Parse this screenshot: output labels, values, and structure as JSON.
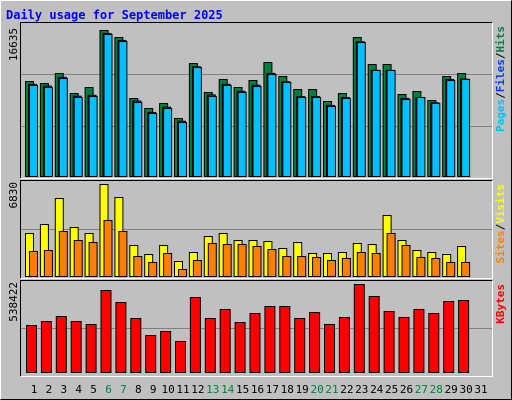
{
  "title": "Daily usage for September 2025",
  "legend_separator": "/",
  "categories": [
    "1",
    "2",
    "3",
    "4",
    "5",
    "6",
    "7",
    "8",
    "9",
    "10",
    "11",
    "12",
    "13",
    "14",
    "15",
    "16",
    "17",
    "18",
    "19",
    "20",
    "21",
    "22",
    "23",
    "24",
    "25",
    "26",
    "27",
    "28",
    "29",
    "30",
    "31"
  ],
  "category_colors": [
    "#000000",
    "#000000",
    "#000000",
    "#000000",
    "#000000",
    "#008040",
    "#008040",
    "#000000",
    "#000000",
    "#000000",
    "#000000",
    "#000000",
    "#008040",
    "#008040",
    "#000000",
    "#000000",
    "#000000",
    "#000000",
    "#000000",
    "#008040",
    "#008040",
    "#000000",
    "#000000",
    "#000000",
    "#000000",
    "#000000",
    "#008040",
    "#008040",
    "#000000",
    "#000000",
    "#000000"
  ],
  "chart_data": [
    {
      "type": "bar",
      "ylim": [
        0,
        16635
      ],
      "yticks": [
        16635
      ],
      "legend_order": [
        2,
        1,
        0
      ],
      "series": [
        {
          "name": "Hits",
          "color": "#008040",
          "values": [
            10821,
            10593,
            11732,
            9454,
            10137,
            16635,
            15832,
            8884,
            7745,
            8315,
            6606,
            12871,
            9568,
            11048,
            10137,
            10934,
            12985,
            11390,
            9909,
            9909,
            8543,
            9454,
            15832,
            12757,
            12757,
            9340,
            9682,
            8656,
            11390,
            11732,
            null
          ]
        },
        {
          "name": "Files",
          "color": "#0040ff",
          "values": [
            10500,
            10300,
            11300,
            9150,
            9250,
            16300,
            15500,
            8600,
            7300,
            7900,
            6300,
            12500,
            9300,
            10500,
            9700,
            10400,
            11750,
            10800,
            9100,
            9100,
            8100,
            9000,
            15350,
            12100,
            12100,
            8900,
            9000,
            8400,
            11050,
            11100,
            null
          ]
        },
        {
          "name": "Pages",
          "color": "#00c0ff",
          "values": [
            10365,
            10137,
            11162,
            8998,
            9112,
            16179,
            15376,
            8428,
            7176,
            7745,
            6150,
            12415,
            9112,
            10365,
            9568,
            10251,
            11618,
            10707,
            8998,
            8998,
            7974,
            8884,
            15262,
            12074,
            12074,
            8770,
            8998,
            8315,
            10934,
            11048,
            null
          ]
        }
      ]
    },
    {
      "type": "bar",
      "ylim": [
        0,
        6830
      ],
      "yticks": [
        6830
      ],
      "legend_order": [
        1,
        0
      ],
      "series": [
        {
          "name": "Visits",
          "color": "#ffff00",
          "values": [
            3191,
            3858,
            5788,
            3636,
            3191,
            6830,
            5862,
            2300,
            1632,
            2300,
            1113,
            1781,
            2968,
            3191,
            2671,
            2671,
            2597,
            2078,
            2523,
            1707,
            1707,
            1781,
            2449,
            2374,
            4526,
            2671,
            1929,
            1781,
            1632,
            2226,
            null
          ]
        },
        {
          "name": "Sites",
          "color": "#ff8000",
          "values": [
            1855,
            1929,
            3339,
            2671,
            2523,
            4155,
            3339,
            1484,
            1039,
            1707,
            519,
            1187,
            2449,
            2374,
            2374,
            2226,
            2003,
            1484,
            1484,
            1410,
            1187,
            1336,
            1781,
            1707,
            3191,
            2300,
            1410,
            1336,
            1039,
            1039,
            null
          ]
        }
      ]
    },
    {
      "type": "bar",
      "ylim": [
        0,
        538422
      ],
      "yticks": [
        538422
      ],
      "legend_order": [
        0
      ],
      "series": [
        {
          "name": "KBytes",
          "color": "#ff0000",
          "values": [
            287546,
            312018,
            342608,
            312018,
            293664,
            501676,
            428260,
            330372,
            226366,
            250838,
            189658,
            458850,
            330372,
            385434,
            305900,
            360962,
            403788,
            403788,
            330372,
            367080,
            293664,
            336490,
            538422,
            464968,
            373198,
            336490,
            385434,
            360962,
            434378,
            440496,
            null
          ]
        }
      ]
    }
  ]
}
